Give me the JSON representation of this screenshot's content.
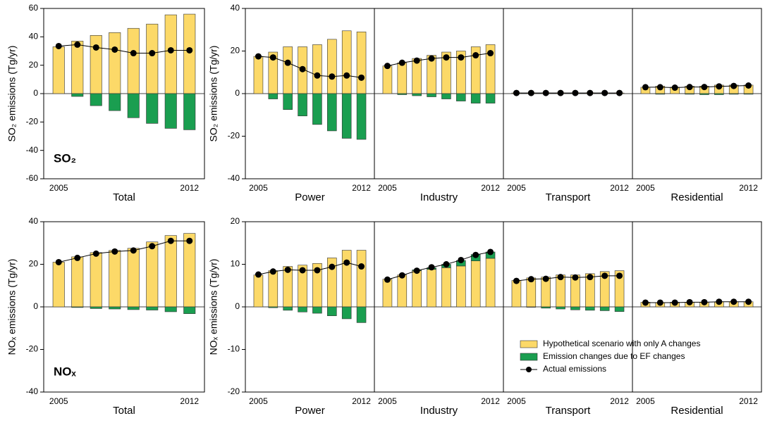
{
  "chart_data": [
    {
      "type": "bar",
      "ylabel": "SO₂ emissions (Tg/yr)",
      "panel_label": "SO₂",
      "ylim": [
        -60,
        60
      ],
      "yticks": [
        -60,
        -40,
        -20,
        0,
        20,
        40,
        60
      ],
      "groups": [
        {
          "label": "Total",
          "categories": [
            "2005",
            null,
            null,
            null,
            null,
            null,
            null,
            "2012"
          ],
          "series": [
            {
              "type": "bar",
              "color": "#fcd968",
              "values": [
                33,
                37,
                41,
                43,
                46,
                49,
                55.5,
                56
              ]
            },
            {
              "type": "bar",
              "color": "#1a9e50",
              "values": [
                0,
                -2,
                -8.5,
                -12,
                -17,
                -21,
                -24.5,
                -25.5
              ]
            },
            {
              "type": "line",
              "color": "#000000",
              "values": [
                33.5,
                34.5,
                32.5,
                31,
                28.5,
                28.5,
                30.5,
                30.5
              ]
            }
          ]
        }
      ]
    },
    {
      "type": "bar",
      "ylabel": "SO₂ emissions (Tg/yr)",
      "ylim": [
        -40,
        40
      ],
      "yticks": [
        -40,
        -20,
        0,
        20,
        40
      ],
      "groups": [
        {
          "label": "Power",
          "categories": [
            "2005",
            null,
            null,
            null,
            null,
            null,
            null,
            "2012"
          ],
          "series": [
            {
              "type": "bar",
              "color": "#fcd968",
              "values": [
                17.5,
                19.5,
                22,
                22,
                23,
                25.5,
                29.5,
                29
              ]
            },
            {
              "type": "bar",
              "color": "#1a9e50",
              "values": [
                0,
                -2.5,
                -7.5,
                -10.5,
                -14.5,
                -17.5,
                -21,
                -21.5
              ]
            },
            {
              "type": "line",
              "color": "#000000",
              "values": [
                17.5,
                17,
                14.5,
                11.5,
                8.5,
                8,
                8.5,
                7.5
              ]
            }
          ]
        },
        {
          "label": "Industry",
          "categories": [
            "2005",
            null,
            null,
            null,
            null,
            null,
            null,
            "2012"
          ],
          "series": [
            {
              "type": "bar",
              "color": "#fcd968",
              "values": [
                13,
                14.5,
                16.5,
                18,
                19.5,
                20,
                22,
                23
              ]
            },
            {
              "type": "bar",
              "color": "#1a9e50",
              "values": [
                0,
                -0.5,
                -1,
                -1.5,
                -2.5,
                -3.5,
                -4.5,
                -4.5
              ]
            },
            {
              "type": "line",
              "color": "#000000",
              "values": [
                13,
                14.5,
                15.5,
                16.5,
                17,
                17,
                18,
                19
              ]
            }
          ]
        },
        {
          "label": "Transport",
          "categories": [
            "2005",
            null,
            null,
            null,
            null,
            null,
            null,
            "2012"
          ],
          "series": [
            {
              "type": "bar",
              "color": "#fcd968",
              "values": [
                0.3,
                0.3,
                0.3,
                0.3,
                0.3,
                0.3,
                0.3,
                0.3
              ]
            },
            {
              "type": "bar",
              "color": "#1a9e50",
              "values": [
                0,
                0,
                0,
                0,
                0,
                0,
                0,
                0
              ]
            },
            {
              "type": "line",
              "color": "#000000",
              "values": [
                0.3,
                0.3,
                0.3,
                0.3,
                0.3,
                0.3,
                0.3,
                0.3
              ]
            }
          ]
        },
        {
          "label": "Residential",
          "categories": [
            "2005",
            null,
            null,
            null,
            null,
            null,
            null,
            "2012"
          ],
          "series": [
            {
              "type": "bar",
              "color": "#fcd968",
              "values": [
                3,
                3.5,
                3,
                3.5,
                3.5,
                4,
                4,
                4
              ]
            },
            {
              "type": "bar",
              "color": "#1a9e50",
              "values": [
                0,
                -0.3,
                0,
                -0.3,
                -0.5,
                -0.5,
                -0.3,
                -0.3
              ]
            },
            {
              "type": "line",
              "color": "#000000",
              "values": [
                3,
                3,
                2.8,
                3.1,
                3.1,
                3.4,
                3.6,
                3.8
              ]
            }
          ]
        }
      ]
    },
    {
      "type": "bar",
      "ylabel": "NOₓ emissions (Tg/yr)",
      "panel_label": "NOₓ",
      "ylim": [
        -40,
        40
      ],
      "yticks": [
        -40,
        -20,
        0,
        20,
        40
      ],
      "groups": [
        {
          "label": "Total",
          "categories": [
            "2005",
            null,
            null,
            null,
            null,
            null,
            null,
            "2012"
          ],
          "series": [
            {
              "type": "bar",
              "color": "#fcd968",
              "values": [
                21,
                23.5,
                25.5,
                26.5,
                27.5,
                30.5,
                33.5,
                34.5
              ]
            },
            {
              "type": "bar",
              "color": "#1a9e50",
              "values": [
                0,
                -0.3,
                -0.8,
                -1,
                -1.3,
                -1.5,
                -2.3,
                -3.2
              ]
            },
            {
              "type": "line",
              "color": "#000000",
              "values": [
                21,
                23,
                25,
                26,
                26.5,
                28.5,
                31,
                31
              ]
            }
          ]
        }
      ]
    },
    {
      "type": "bar",
      "ylabel": "NOₓ emissions (Tg/yr)",
      "ylim": [
        -20,
        20
      ],
      "yticks": [
        -20,
        -10,
        0,
        10,
        20
      ],
      "legend_position": "lower right",
      "legend": [
        {
          "name": "Hypothetical scenario with only A changes",
          "type": "bar",
          "color": "#fcd968"
        },
        {
          "name": "Emission changes due to EF changes",
          "type": "bar",
          "color": "#1a9e50"
        },
        {
          "name": "Actual emissions",
          "type": "line",
          "color": "#000000"
        }
      ],
      "groups": [
        {
          "label": "Power",
          "categories": [
            "2005",
            null,
            null,
            null,
            null,
            null,
            null,
            "2012"
          ],
          "series": [
            {
              "type": "bar",
              "color": "#fcd968",
              "values": [
                7.5,
                8.5,
                9.5,
                9.8,
                10.2,
                11.5,
                13.3,
                13.3
              ]
            },
            {
              "type": "bar",
              "color": "#1a9e50",
              "values": [
                0,
                -0.2,
                -0.8,
                -1.2,
                -1.5,
                -2.1,
                -2.8,
                -3.7
              ]
            },
            {
              "type": "line",
              "color": "#000000",
              "values": [
                7.6,
                8.3,
                8.7,
                8.6,
                8.6,
                9.4,
                10.4,
                9.5
              ]
            }
          ]
        },
        {
          "label": "Industry",
          "categories": [
            "2005",
            null,
            null,
            null,
            null,
            null,
            null,
            "2012"
          ],
          "series": [
            {
              "type": "bar",
              "color": "#fcd968",
              "values": [
                6.5,
                7.5,
                8.5,
                8.8,
                9.2,
                9.6,
                10.8,
                11.4
              ]
            },
            {
              "type": "bar",
              "color": "#1a9e50",
              "values": [
                0,
                0,
                0.2,
                0.4,
                0.8,
                1.3,
                1.5,
                1.5
              ]
            },
            {
              "type": "line",
              "color": "#000000",
              "values": [
                6.4,
                7.4,
                8.5,
                9.3,
                10,
                11,
                12.2,
                12.9
              ]
            }
          ]
        },
        {
          "label": "Transport",
          "categories": [
            "2005",
            null,
            null,
            null,
            null,
            null,
            null,
            "2012"
          ],
          "series": [
            {
              "type": "bar",
              "color": "#fcd968",
              "values": [
                6.2,
                6.8,
                7,
                7.5,
                7.5,
                7.8,
                8.3,
                8.5
              ]
            },
            {
              "type": "bar",
              "color": "#1a9e50",
              "values": [
                0,
                -0.1,
                -0.3,
                -0.5,
                -0.7,
                -0.8,
                -0.9,
                -1.1
              ]
            },
            {
              "type": "line",
              "color": "#000000",
              "values": [
                6.1,
                6.5,
                6.6,
                7,
                6.9,
                7,
                7.3,
                7.3
              ]
            }
          ]
        },
        {
          "label": "Residential",
          "categories": [
            "2005",
            null,
            null,
            null,
            null,
            null,
            null,
            "2012"
          ],
          "series": [
            {
              "type": "bar",
              "color": "#fcd968",
              "values": [
                1.1,
                1,
                1.1,
                1.1,
                1.1,
                1.2,
                1.2,
                1.2
              ]
            },
            {
              "type": "bar",
              "color": "#1a9e50",
              "values": [
                0,
                0,
                0,
                0,
                0,
                0,
                0,
                0
              ]
            },
            {
              "type": "line",
              "color": "#000000",
              "values": [
                1,
                1,
                1,
                1.1,
                1.1,
                1.2,
                1.2,
                1.2
              ]
            }
          ]
        }
      ]
    }
  ]
}
